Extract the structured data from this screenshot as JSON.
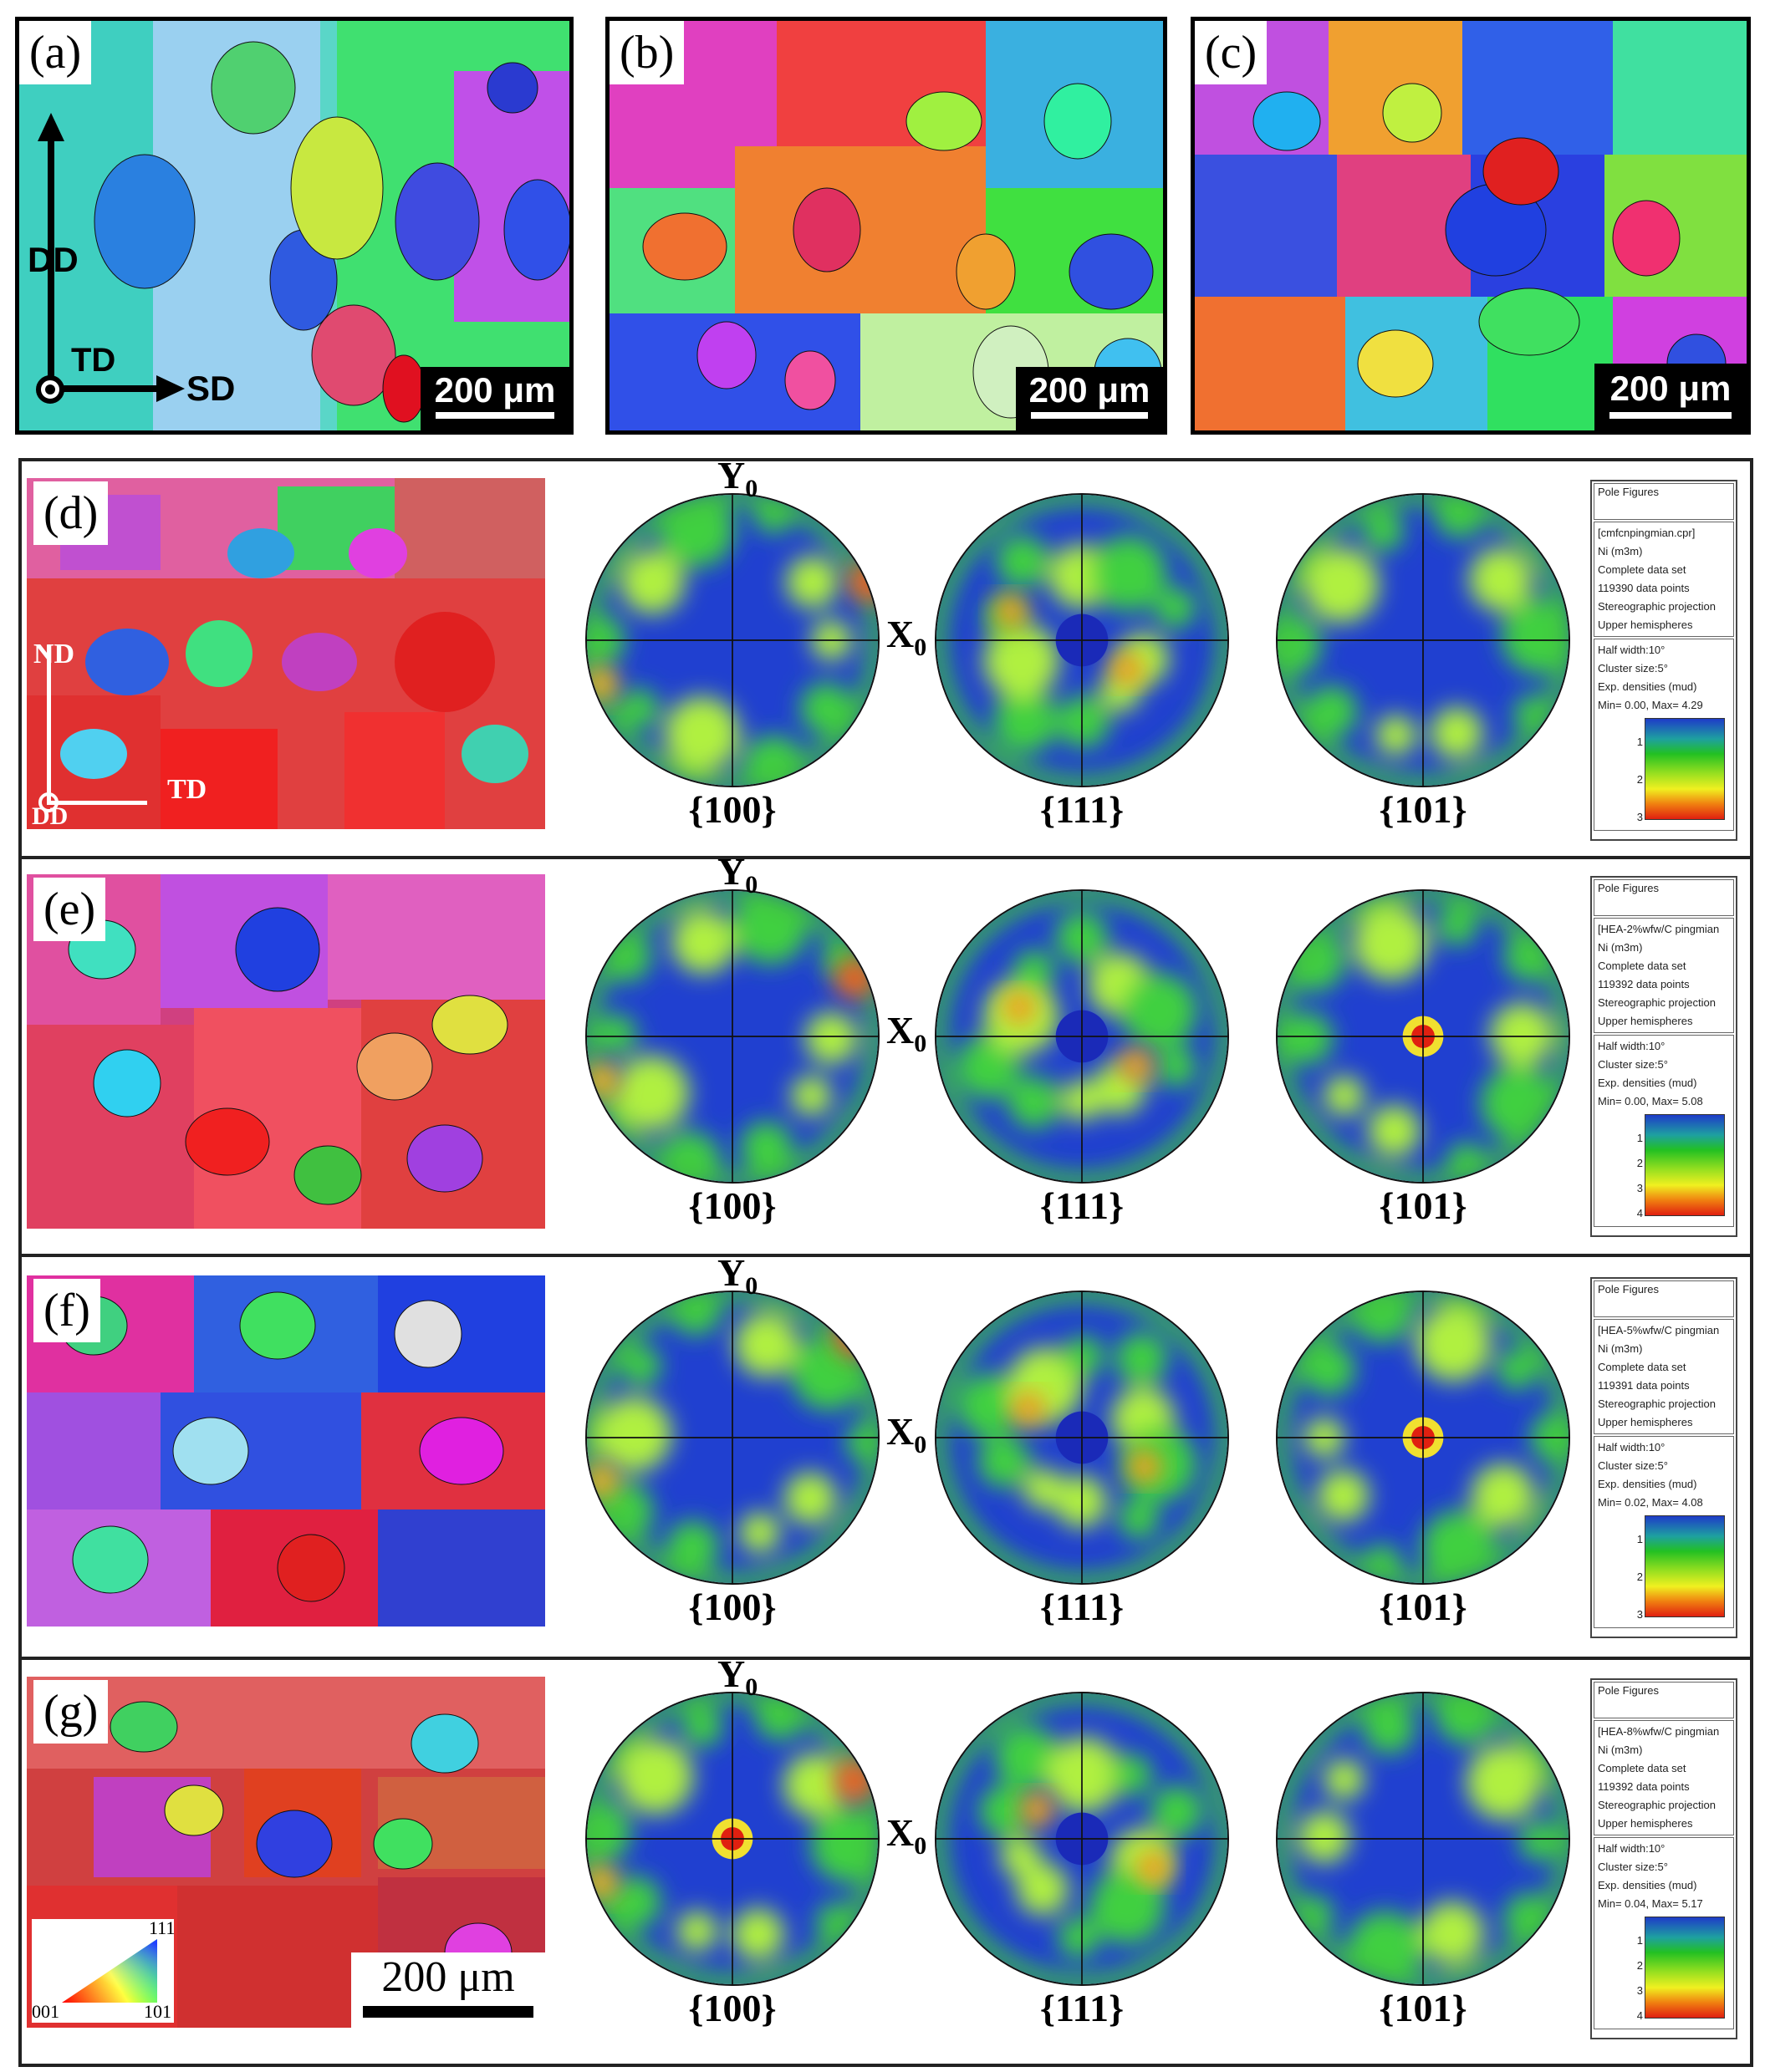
{
  "top_panels": [
    {
      "label": "(a)",
      "scale": "200 μm",
      "axes": {
        "dd": "DD",
        "td": "TD",
        "sd": "SD"
      }
    },
    {
      "label": "(b)",
      "scale": "200 μm"
    },
    {
      "label": "(c)",
      "scale": "200 μm"
    }
  ],
  "rows": [
    {
      "label": "(d)",
      "axes": {
        "nd": "ND",
        "dd": "DD",
        "td": "TD"
      },
      "y_axis": "Y",
      "y_sub": "0",
      "x_axis": "X",
      "x_sub": "0",
      "pole_figures": [
        "{100}",
        "{111}",
        "{101}"
      ],
      "legend": {
        "title": "Pole Figures",
        "info": [
          "[cmfcnpingmian.cpr]",
          "Ni (m3m)",
          "Complete data set",
          "119390 data points",
          "Stereographic projection",
          "Upper hemispheres"
        ],
        "params": [
          "Half width:10°",
          "Cluster size:5°",
          "Exp. densities (mud)",
          "Min= 0.00, Max= 4.29"
        ],
        "ticks": [
          "1",
          "2",
          "3"
        ]
      }
    },
    {
      "label": "(e)",
      "y_axis": "Y",
      "y_sub": "0",
      "x_axis": "X",
      "x_sub": "0",
      "pole_figures": [
        "{100}",
        "{111}",
        "{101}"
      ],
      "legend": {
        "title": "Pole Figures",
        "info": [
          "[HEA-2%wfw/C pingmian",
          "Ni (m3m)",
          "Complete data set",
          "119392 data points",
          "Stereographic projection",
          "Upper hemispheres"
        ],
        "params": [
          "Half width:10°",
          "Cluster size:5°",
          "Exp. densities (mud)",
          "Min= 0.00, Max= 5.08"
        ],
        "ticks": [
          "1",
          "2",
          "3",
          "4"
        ]
      }
    },
    {
      "label": "(f)",
      "y_axis": "Y",
      "y_sub": "0",
      "x_axis": "X",
      "x_sub": "0",
      "pole_figures": [
        "{100}",
        "{111}",
        "{101}"
      ],
      "legend": {
        "title": "Pole Figures",
        "info": [
          "[HEA-5%wfw/C pingmian",
          "Ni (m3m)",
          "Complete data set",
          "119391 data points",
          "Stereographic projection",
          "Upper hemispheres"
        ],
        "params": [
          "Half width:10°",
          "Cluster size:5°",
          "Exp. densities (mud)",
          "Min= 0.02, Max= 4.08"
        ],
        "ticks": [
          "1",
          "2",
          "3"
        ]
      }
    },
    {
      "label": "(g)",
      "y_axis": "Y",
      "y_sub": "0",
      "x_axis": "X",
      "x_sub": "0",
      "pole_figures": [
        "{100}",
        "{111}",
        "{101}"
      ],
      "scale": "200 μm",
      "ipf_key": {
        "top": "111",
        "left": "001",
        "right": "101"
      },
      "legend": {
        "title": "Pole Figures",
        "info": [
          "[HEA-8%wfw/C pingmian",
          "Ni (m3m)",
          "Complete data set",
          "119392 data points",
          "Stereographic projection",
          "Upper hemispheres"
        ],
        "params": [
          "Half width:10°",
          "Cluster size:5°",
          "Exp. densities (mud)",
          "Min= 0.04, Max= 5.17"
        ],
        "ticks": [
          "1",
          "2",
          "3",
          "4"
        ]
      }
    }
  ]
}
